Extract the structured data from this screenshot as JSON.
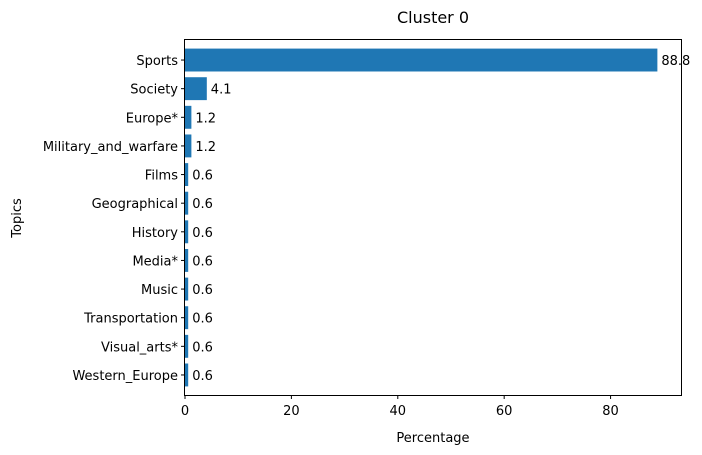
{
  "chart_data": {
    "type": "bar",
    "orientation": "horizontal",
    "title": "Cluster 0",
    "xlabel": "Percentage",
    "ylabel": "Topics",
    "categories": [
      "Sports",
      "Society",
      "Europe*",
      "Military_and_warfare",
      "Films",
      "Geographical",
      "History",
      "Media*",
      "Music",
      "Transportation",
      "Visual_arts*",
      "Western_Europe"
    ],
    "values": [
      88.8,
      4.1,
      1.2,
      1.2,
      0.6,
      0.6,
      0.6,
      0.6,
      0.6,
      0.6,
      0.6,
      0.6
    ],
    "value_labels": [
      "88.8",
      "4.1",
      "1.2",
      "1.2",
      "0.6",
      "0.6",
      "0.6",
      "0.6",
      "0.6",
      "0.6",
      "0.6",
      "0.6"
    ],
    "xlim": [
      0,
      93.24
    ],
    "xticks": [
      0,
      20,
      40,
      60,
      80
    ],
    "xtick_labels": [
      "0",
      "20",
      "40",
      "60",
      "80"
    ],
    "grid": false,
    "bar_color": "#1f77b4"
  }
}
